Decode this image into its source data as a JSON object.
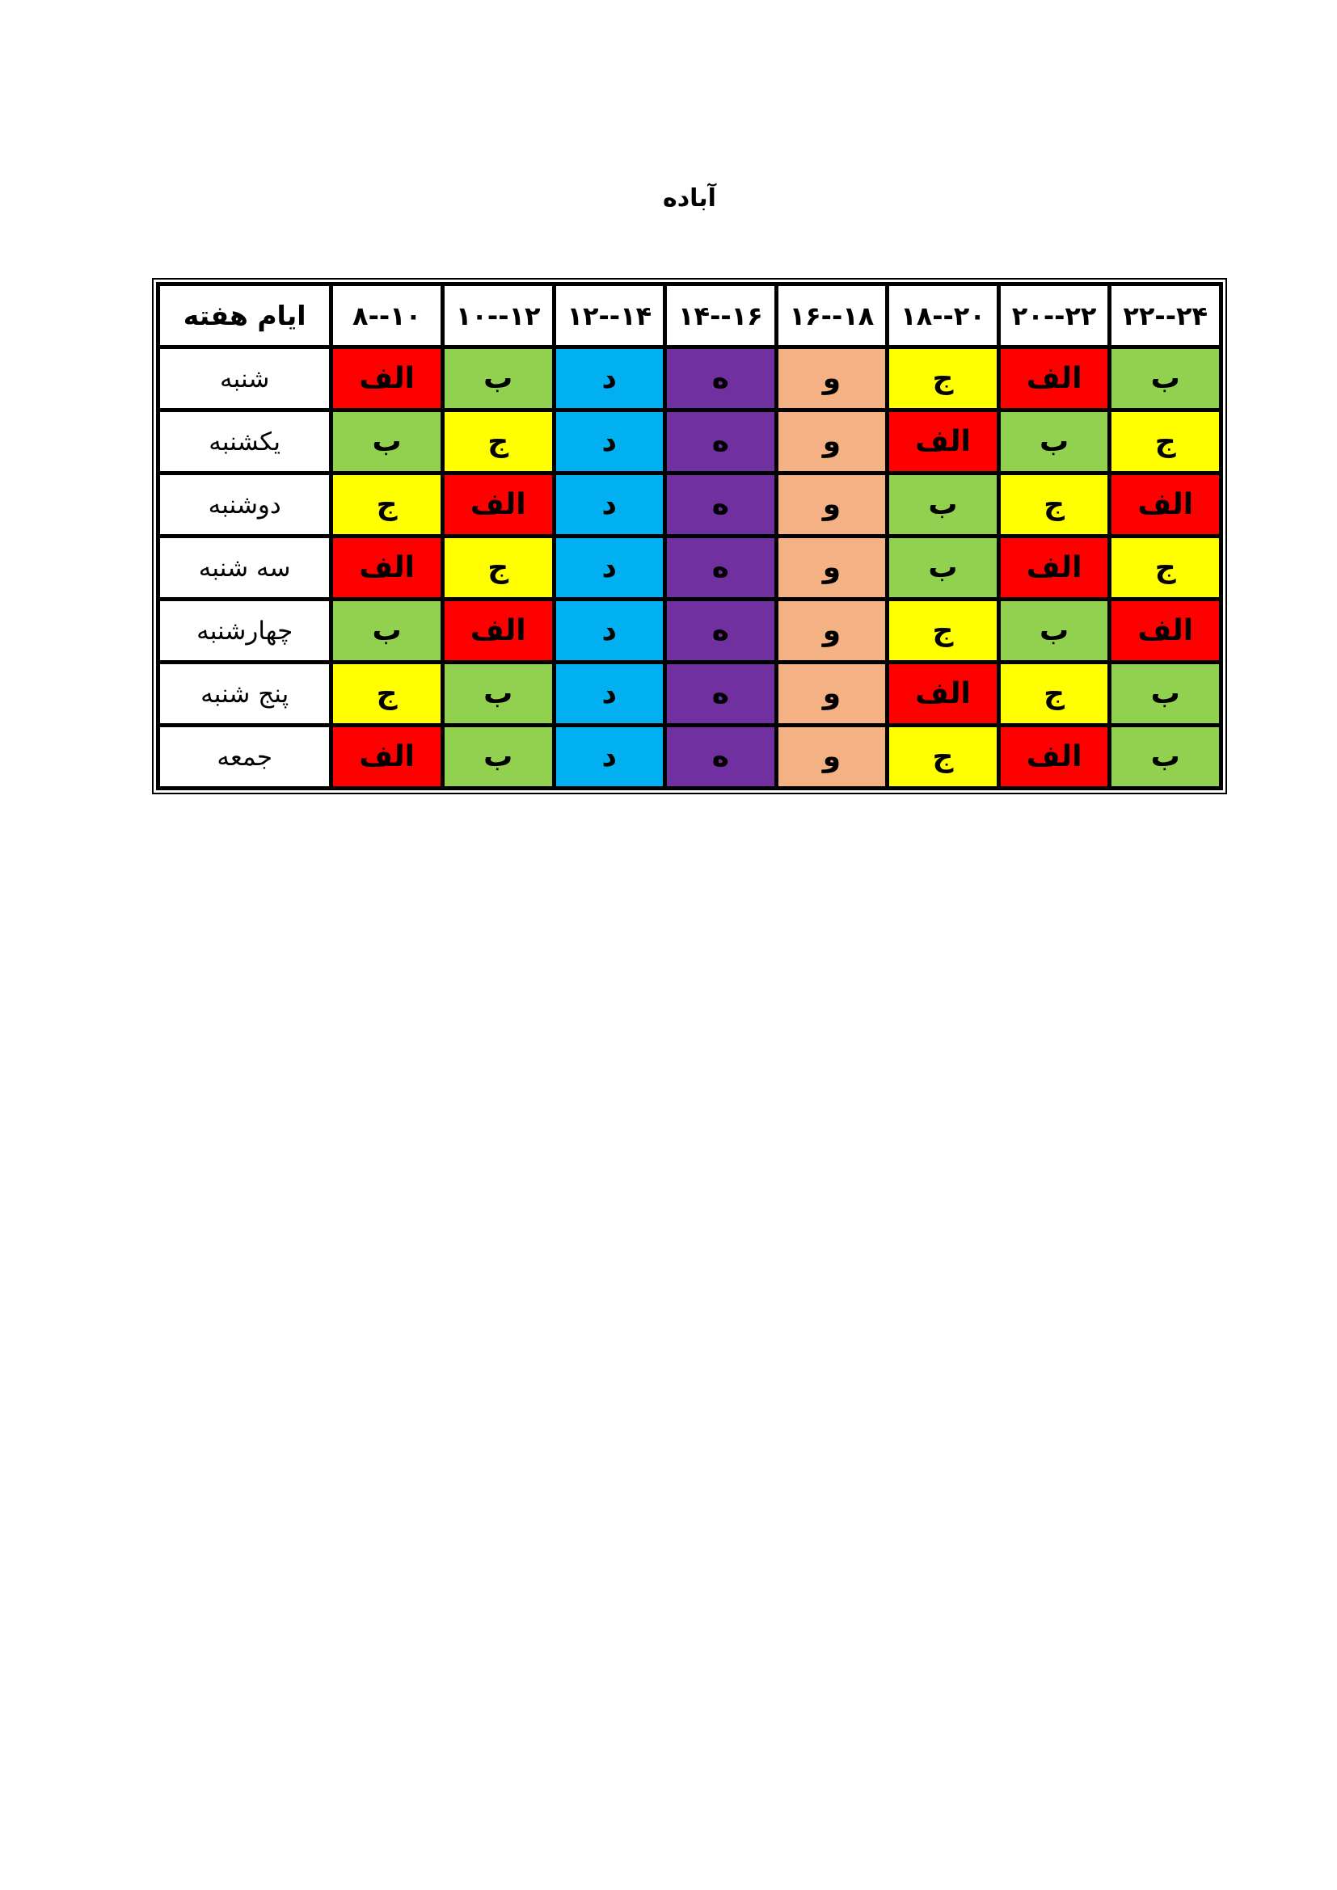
{
  "page": {
    "title": "آباده"
  },
  "table": {
    "header": {
      "days_label": "ایام هفته",
      "time_slots": [
        "۸--۱۰",
        "۱۰--۱۲",
        "۱۲--۱۴",
        "۱۴--۱۶",
        "۱۶--۱۸",
        "۱۸--۲۰",
        "۲۰--۲۲",
        "۲۲--۲۴"
      ]
    },
    "group_colors": {
      "الف": "#FF0000",
      "ب": "#92D050",
      "ج": "#FFFF00",
      "د": "#00B0F0",
      "ه": "#7030A0",
      "و": "#F4B183"
    },
    "rows": [
      {
        "day": "شنبه",
        "slots": [
          "الف",
          "ب",
          "د",
          "ه",
          "و",
          "ج",
          "الف",
          "ب"
        ]
      },
      {
        "day": "یکشنبه",
        "slots": [
          "ب",
          "ج",
          "د",
          "ه",
          "و",
          "الف",
          "ب",
          "ج"
        ]
      },
      {
        "day": "دوشنبه",
        "slots": [
          "ج",
          "الف",
          "د",
          "ه",
          "و",
          "ب",
          "ج",
          "الف"
        ]
      },
      {
        "day": "سه شنبه",
        "slots": [
          "الف",
          "ج",
          "د",
          "ه",
          "و",
          "ب",
          "الف",
          "ج"
        ]
      },
      {
        "day": "چهارشنبه",
        "slots": [
          "ب",
          "الف",
          "د",
          "ه",
          "و",
          "ج",
          "ب",
          "الف"
        ]
      },
      {
        "day": "پنج شنبه",
        "slots": [
          "ج",
          "ب",
          "د",
          "ه",
          "و",
          "الف",
          "ج",
          "ب"
        ]
      },
      {
        "day": "جمعه",
        "slots": [
          "الف",
          "ب",
          "د",
          "ه",
          "و",
          "ج",
          "الف",
          "ب"
        ]
      }
    ]
  }
}
